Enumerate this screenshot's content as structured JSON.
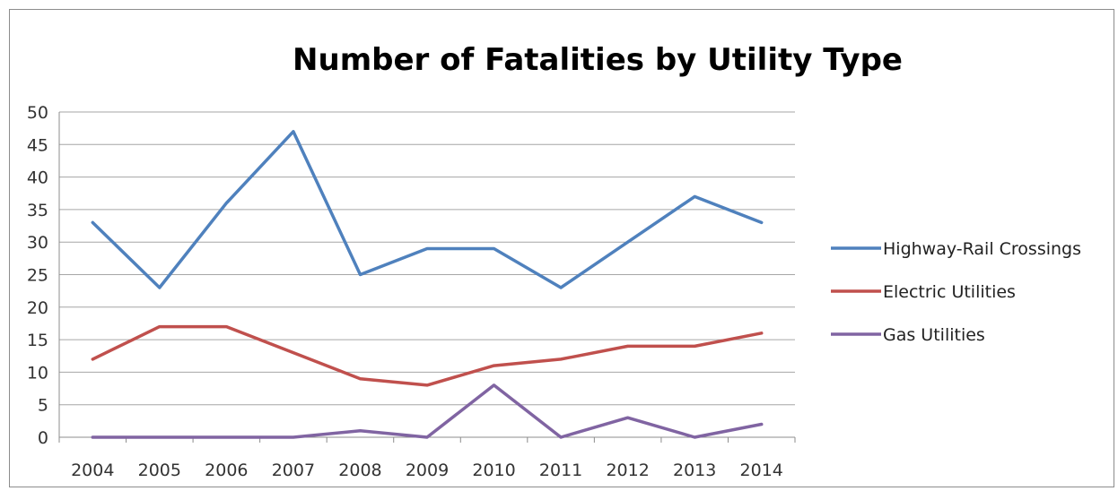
{
  "chart_data": {
    "type": "line",
    "title": "Number of Fatalities by Utility Type",
    "xlabel": "",
    "ylabel": "",
    "categories": [
      "2004",
      "2005",
      "2006",
      "2007",
      "2008",
      "2009",
      "2010",
      "2011",
      "2012",
      "2013",
      "2014"
    ],
    "ylim": [
      0,
      50
    ],
    "yticks": [
      0,
      5,
      10,
      15,
      20,
      25,
      30,
      35,
      40,
      45,
      50
    ],
    "grid": true,
    "legend_position": "right",
    "series": [
      {
        "name": "Highway-Rail Crossings",
        "color": "#4f81bd",
        "values": [
          33,
          23,
          36,
          47,
          25,
          29,
          29,
          23,
          30,
          37,
          33
        ]
      },
      {
        "name": "Electric Utilities",
        "color": "#c0504d",
        "values": [
          12,
          17,
          17,
          13,
          9,
          8,
          11,
          12,
          14,
          14,
          16
        ]
      },
      {
        "name": "Gas Utilities",
        "color": "#8064a2",
        "values": [
          0,
          0,
          0,
          0,
          1,
          0,
          8,
          0,
          3,
          0,
          2
        ]
      }
    ]
  }
}
